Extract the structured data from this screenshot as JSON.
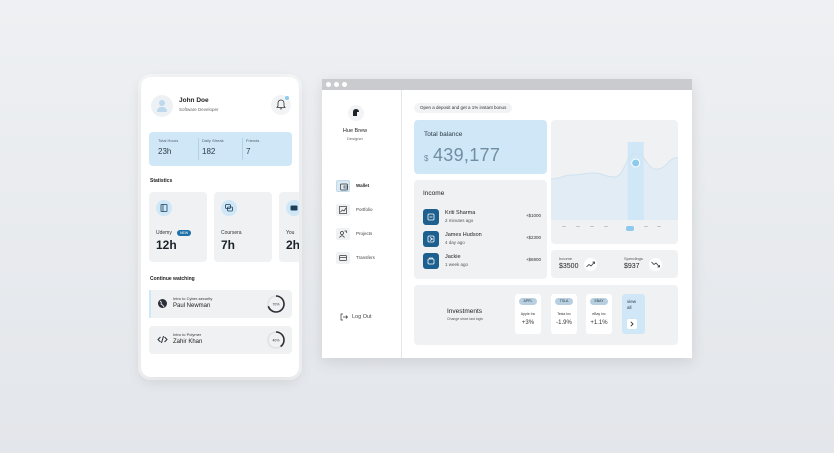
{
  "mobile": {
    "profile": {
      "name": "John Doe",
      "role": "Software Developer"
    },
    "summary": [
      {
        "label": "Total Hours",
        "value": "23h"
      },
      {
        "label": "Daily Streak",
        "value": "182"
      },
      {
        "label": "Friends",
        "value": "7"
      }
    ],
    "statistics_title": "Statistics",
    "courses": [
      {
        "name": "Udemy",
        "badge": "NEW",
        "hours": "12h",
        "icon": "book-icon"
      },
      {
        "name": "Coursera",
        "hours": "7h",
        "icon": "chat-icon"
      },
      {
        "name": "You",
        "hours": "2h",
        "icon": "video-icon"
      }
    ],
    "continue_title": "Continue watching",
    "watching": [
      {
        "title": "Intro to Cyber-security",
        "author": "Paul Newman",
        "progress": 0.7,
        "progress_label": "70%",
        "icon": "globe-icon"
      },
      {
        "title": "Intro to Polymer",
        "author": "Zahir Khan",
        "progress": 0.4,
        "progress_label": "40%",
        "icon": "code-icon"
      }
    ]
  },
  "desktop": {
    "profile": {
      "name": "Hue Brew",
      "role": "Designer"
    },
    "nav": [
      {
        "label": "Wallet",
        "icon": "wallet-icon",
        "active": true
      },
      {
        "label": "Portfolio",
        "icon": "chart-icon"
      },
      {
        "label": "Projects",
        "icon": "projects-icon"
      },
      {
        "label": "Transfers",
        "icon": "transfer-icon"
      }
    ],
    "logout": "Log Out",
    "promo": "Open a deposit and get a 1% instant bonus",
    "balance": {
      "label": "Total balance",
      "currency": "$",
      "amount": "439,177"
    },
    "income": {
      "title": "Income",
      "rows": [
        {
          "name": "Kriti Sharma",
          "time": "2 minutes ago",
          "amount": "+$1000"
        },
        {
          "name": "James Hudson",
          "time": "4 day ago",
          "amount": "+$2300"
        },
        {
          "name": "Jackie",
          "time": "1 week ago",
          "amount": "+$6900"
        }
      ]
    },
    "chart_data": {
      "type": "area",
      "x": [
        "",
        "",
        "",
        "",
        "",
        "",
        ""
      ],
      "series": [
        {
          "values": [
            30,
            34,
            36,
            32,
            56,
            40,
            52
          ]
        }
      ],
      "highlight_index": 4,
      "grid": false
    },
    "totals": {
      "income_label": "Income",
      "income_value": "$3500",
      "spendings_label": "Spendings",
      "spendings_value": "$937"
    },
    "investments": {
      "title": "Investments",
      "subtitle": "Change since last login",
      "stocks": [
        {
          "ticker": "APPL",
          "company": "Apple Inc",
          "change": "+3%"
        },
        {
          "ticker": "TSLA",
          "company": "Tesla Inc",
          "change": "-1.9%"
        },
        {
          "ticker": "EBAY",
          "company": "eBay Inc",
          "change": "+1.1%"
        }
      ],
      "view_all": "view all"
    },
    "colors": {
      "accent": "#cfe7f6",
      "dark": "#1d5f8e"
    }
  }
}
